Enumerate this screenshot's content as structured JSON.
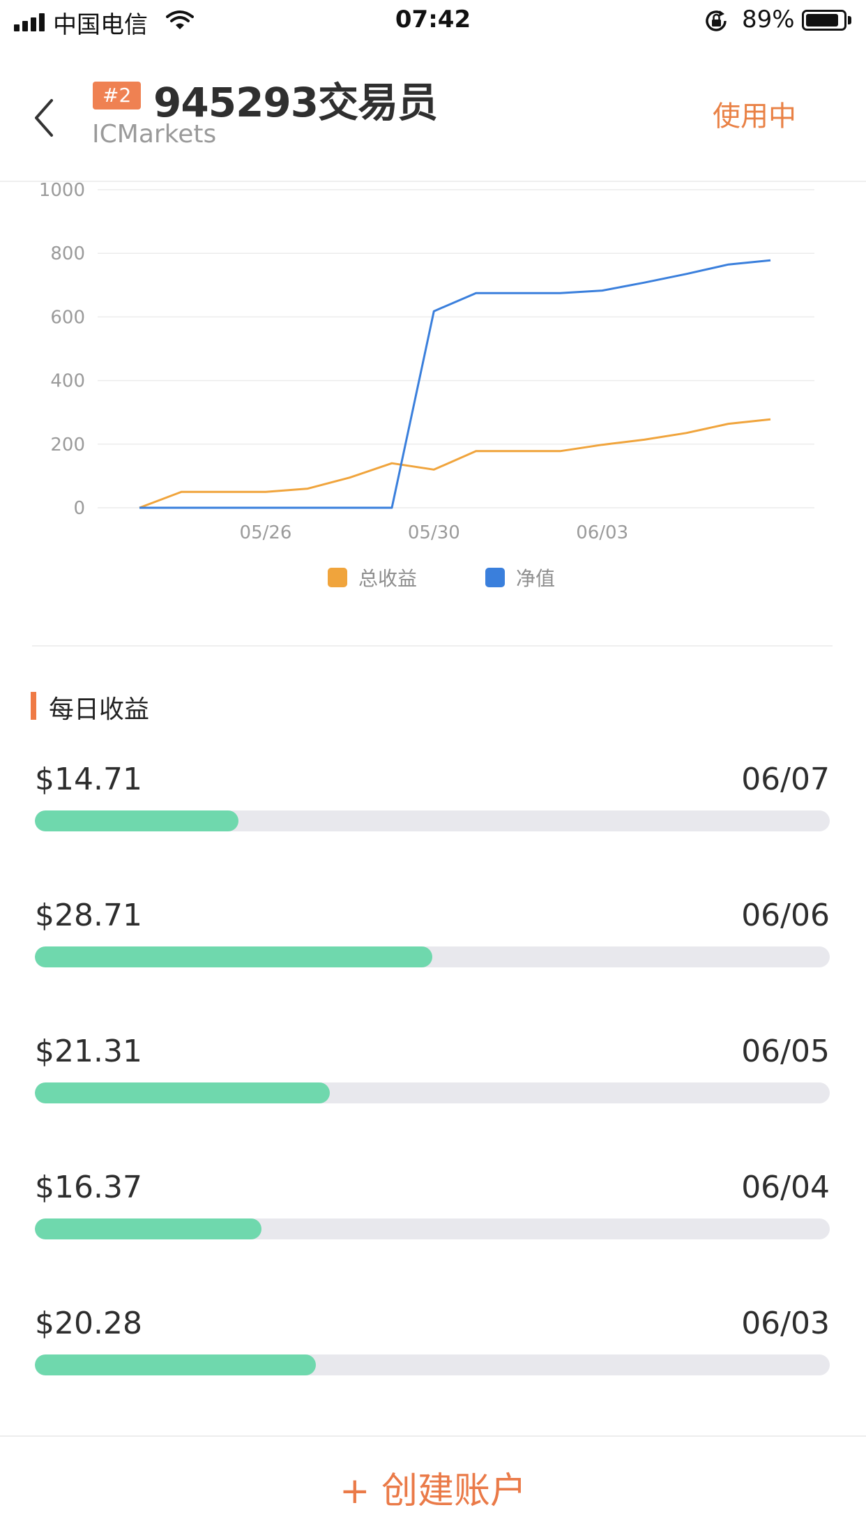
{
  "status_bar": {
    "carrier": "中国电信",
    "time": "07:42",
    "battery_percent": "89%",
    "battery_level": 0.89,
    "icons": [
      "signal-icon",
      "wifi-icon",
      "rotation-lock-icon",
      "battery-icon"
    ]
  },
  "header": {
    "back_icon": "chevron-left-icon",
    "rank_badge": "#2",
    "title": "945293交易员",
    "broker": "ICMarkets",
    "status_action": "使用中"
  },
  "colors": {
    "accent": "#e98145",
    "series_total": "#f0a43c",
    "series_equity": "#3a7fdc",
    "progress_fill": "#6fd8ad",
    "progress_track": "#e8e8ed"
  },
  "chart_data": {
    "type": "line",
    "x": [
      "05/23",
      "05/24",
      "05/25",
      "05/26",
      "05/27",
      "05/28",
      "05/29",
      "05/30",
      "05/31",
      "06/01",
      "06/02",
      "06/03",
      "06/04",
      "06/05",
      "06/06",
      "06/07"
    ],
    "x_ticks": [
      "05/26",
      "05/30",
      "06/03"
    ],
    "y_ticks": [
      0,
      200,
      400,
      600,
      800,
      1000
    ],
    "ylim": [
      0,
      1000
    ],
    "grid": true,
    "legend_position": "bottom",
    "series": [
      {
        "name": "总收益",
        "color": "#f0a43c",
        "values": [
          0,
          50,
          50,
          50,
          60,
          95,
          140,
          120,
          178,
          178,
          178,
          198,
          214,
          235,
          264,
          278
        ]
      },
      {
        "name": "净值",
        "color": "#3a7fdc",
        "values": [
          0,
          0,
          0,
          0,
          0,
          0,
          0,
          618,
          675,
          675,
          675,
          683,
          708,
          735,
          765,
          778
        ]
      }
    ]
  },
  "daily": {
    "title": "每日收益",
    "items": [
      {
        "amount": "$14.71",
        "date": "06/07",
        "value": 14.71
      },
      {
        "amount": "$28.71",
        "date": "06/06",
        "value": 28.71
      },
      {
        "amount": "$21.31",
        "date": "06/05",
        "value": 21.31
      },
      {
        "amount": "$16.37",
        "date": "06/04",
        "value": 16.37
      },
      {
        "amount": "$20.28",
        "date": "06/03",
        "value": 20.28
      }
    ],
    "scale_max": 57.4
  },
  "footer": {
    "create_label": "+ 创建账户"
  }
}
